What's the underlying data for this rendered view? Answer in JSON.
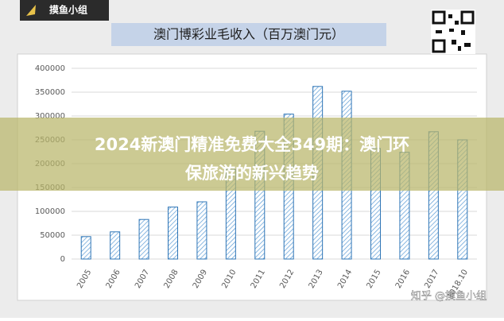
{
  "logo": "摸鱼小组",
  "banner": {
    "lines": [
      "2024新澳门精准免费大全349期：澳门环",
      "保旅游的新兴趋势"
    ]
  },
  "watermark": "知乎 @摸鱼小组",
  "chart_data": {
    "type": "bar",
    "title": "澳门博彩业毛收入（百万澳门元）",
    "categories": [
      "2005",
      "2006",
      "2007",
      "2008",
      "2009",
      "2010",
      "2011",
      "2012",
      "2013",
      "2014",
      "2015",
      "2016",
      "2017",
      "2018.10"
    ],
    "values": [
      47000,
      57000,
      83000,
      109000,
      120000,
      188000,
      268000,
      304000,
      362000,
      352000,
      232000,
      224000,
      267000,
      250000
    ],
    "color": "#2e75b6",
    "ylim": [
      0,
      400000
    ],
    "yticks": [
      0,
      50000,
      100000,
      150000,
      200000,
      250000,
      300000,
      350000,
      400000
    ],
    "grid": true
  }
}
